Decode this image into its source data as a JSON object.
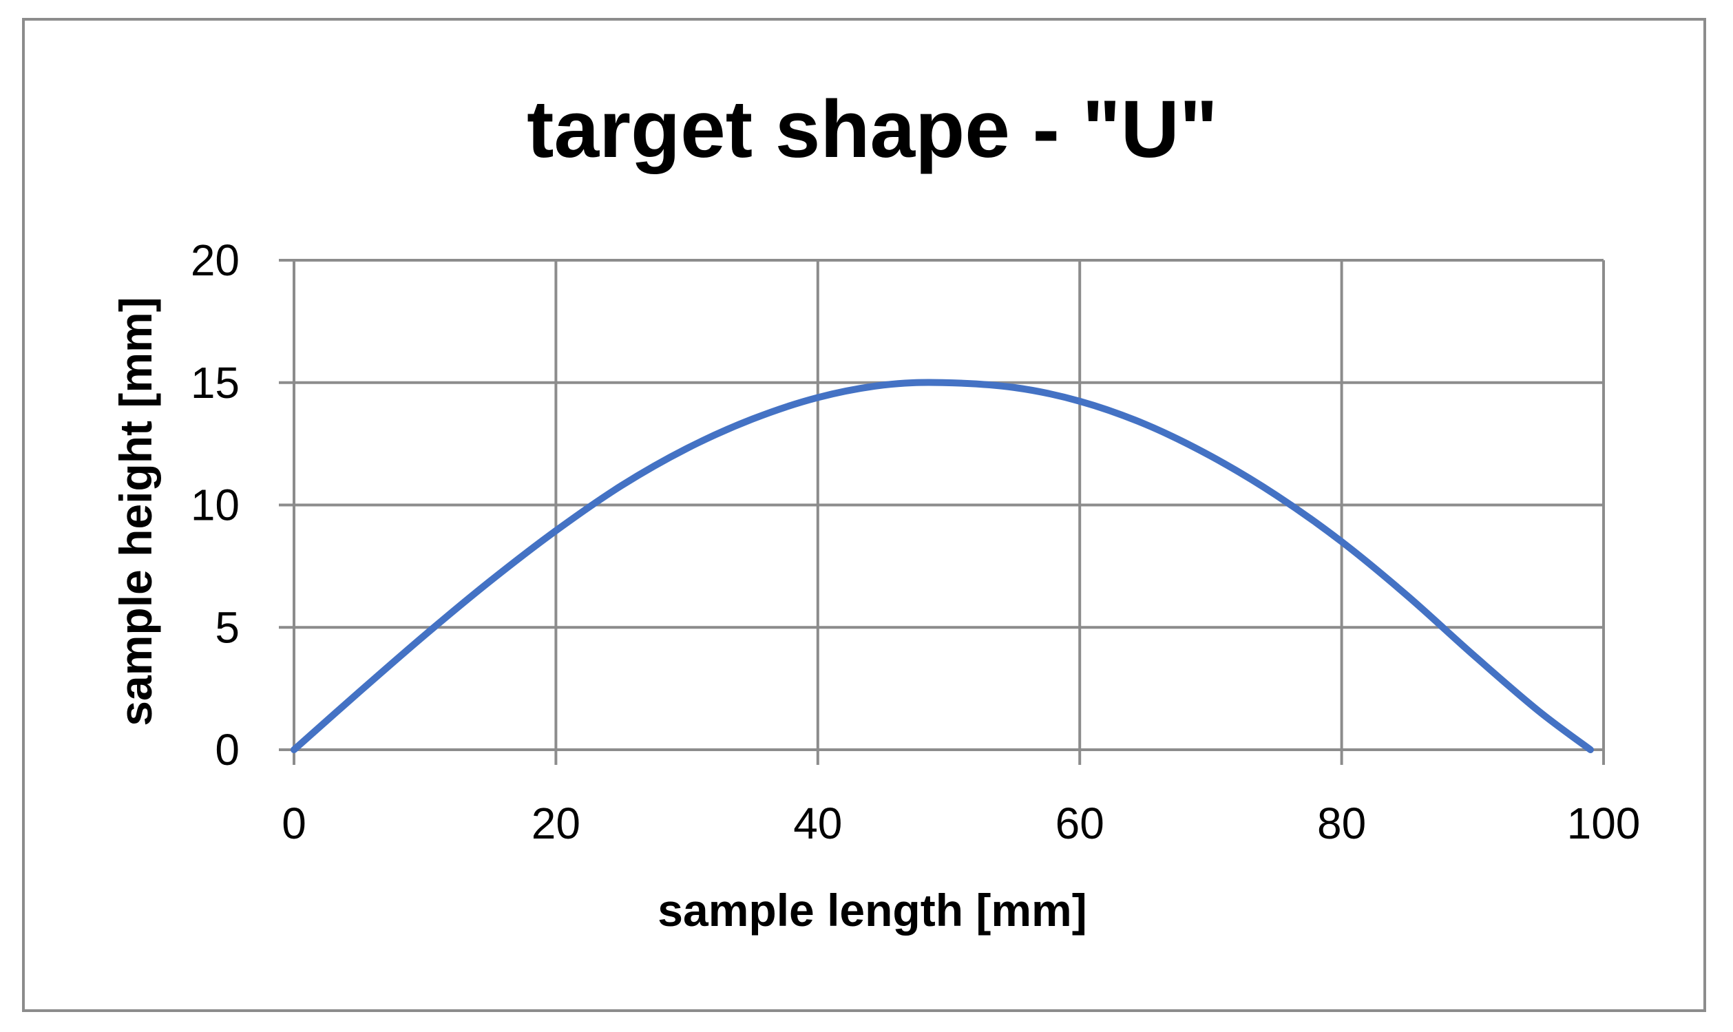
{
  "chart_data": {
    "type": "line",
    "title": "target shape - \"U\"",
    "xlabel": "sample length [mm]",
    "ylabel": "sample height [mm]",
    "xlim": [
      0,
      100
    ],
    "ylim": [
      0,
      20
    ],
    "x_ticks": [
      "0",
      "20",
      "40",
      "60",
      "80",
      "100"
    ],
    "y_ticks": [
      "0",
      "5",
      "10",
      "15",
      "20"
    ],
    "grid": true,
    "legend": "none",
    "series": [
      {
        "color": "#4472c4",
        "x": [
          0,
          5,
          10,
          15,
          20,
          25,
          30,
          35,
          40,
          45,
          49.5,
          55,
          60,
          65,
          70,
          75,
          80,
          85,
          90,
          95,
          99
        ],
        "y": [
          0,
          2.37,
          4.69,
          6.9,
          8.95,
          10.79,
          12.31,
          13.51,
          14.39,
          14.9,
          15.0,
          14.8,
          14.24,
          13.3,
          12.0,
          10.4,
          8.5,
          6.3,
          3.9,
          1.6,
          0
        ]
      }
    ]
  }
}
